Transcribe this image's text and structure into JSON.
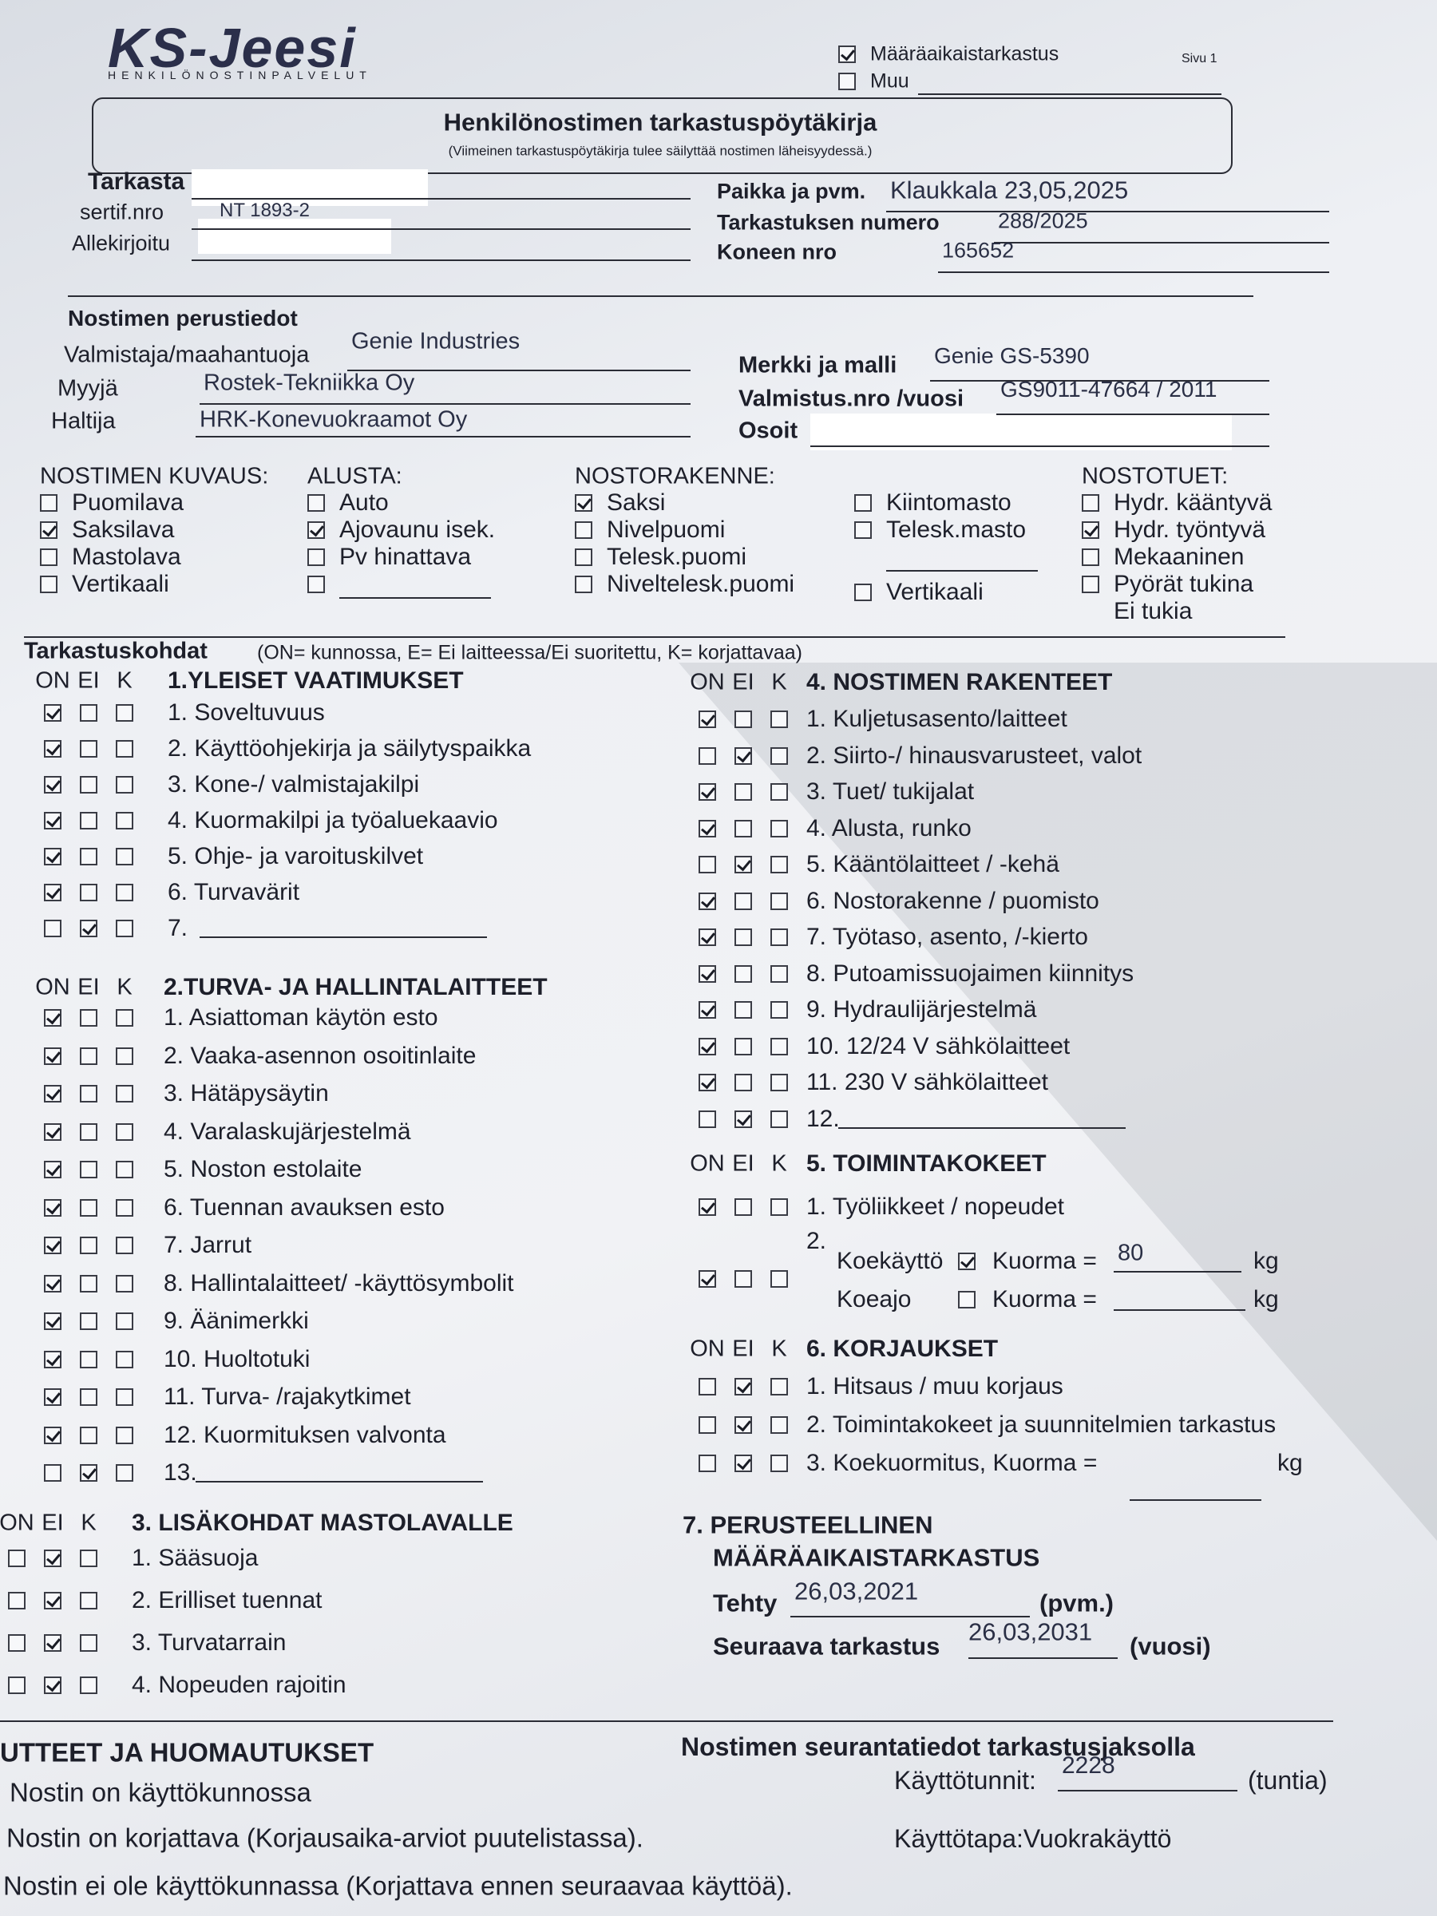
{
  "header": {
    "logo": "KS-Jeesi",
    "logo_sub": "HENKILÖNOSTINPALVELUT",
    "options": [
      {
        "label": "Määräaikaistarkastus",
        "checked": true
      },
      {
        "label": "Muu",
        "checked": false
      }
    ],
    "page": "Sivu 1"
  },
  "title": {
    "main": "Henkilönostimen tarkastuspöytäkirja",
    "note": "(Viimeinen tarkastuspöytäkirja tulee säilyttää nostimen läheisyydessä.)"
  },
  "inspector": {
    "left": [
      {
        "label": "Tarkasta"
      },
      {
        "label": "sertif.nro",
        "value": "NT 1893-2"
      },
      {
        "label": "Allekirjoitu"
      }
    ],
    "right": [
      {
        "label": "Paikka ja pvm.",
        "value": "Klaukkala 23,05,2025"
      },
      {
        "label": "Tarkastuksen numero",
        "value": "288/2025"
      },
      {
        "label": "Koneen nro",
        "value": "165652"
      }
    ]
  },
  "basic": {
    "title": "Nostimen perustiedot",
    "left": [
      {
        "label": "Valmistaja/maahantuoja",
        "value": "Genie Industries"
      },
      {
        "label": "Myyjä",
        "value": "Rostek-Tekniikka Oy"
      },
      {
        "label": "Haltija",
        "value": "HRK-Konevuokraamot Oy"
      }
    ],
    "right": [
      {
        "label": "Merkki ja malli",
        "value": "Genie GS-5390"
      },
      {
        "label": "Valmistus.nro /vuosi",
        "value": "GS9011-47664 / 2011"
      },
      {
        "label": "Osoit"
      }
    ]
  },
  "description": [
    {
      "title": "NOSTIMEN KUVAUS:",
      "items": [
        {
          "label": "Puomilava",
          "checked": false
        },
        {
          "label": "Saksilava",
          "checked": true
        },
        {
          "label": "Mastolava",
          "checked": false
        },
        {
          "label": "Vertikaali",
          "checked": false
        }
      ]
    },
    {
      "title": "ALUSTA:",
      "items": [
        {
          "label": "Auto",
          "checked": false
        },
        {
          "label": "Ajovaunu isek.",
          "checked": true
        },
        {
          "label": "Pv hinattava",
          "checked": false
        },
        {
          "checked": false
        }
      ]
    },
    {
      "title": "NOSTORAKENNE:",
      "items": [
        {
          "label": "Saksi",
          "checked": true
        },
        {
          "label": "Nivelpuomi",
          "checked": false
        },
        {
          "label": "Telesk.puomi",
          "checked": false
        },
        {
          "label": "Niveltelesk.puomi",
          "checked": false
        }
      ]
    },
    {
      "items": [
        {
          "label": "Kiintomasto",
          "checked": false
        },
        {
          "label": "Telesk.masto",
          "checked": false
        },
        {
          "box": false
        },
        {
          "label": "Vertikaali",
          "checked": false
        }
      ]
    },
    {
      "title": "NOSTOTUET:",
      "items": [
        {
          "label": "Hydr. kääntyvä",
          "checked": false
        },
        {
          "label": "Hydr. työntyvä",
          "checked": true
        },
        {
          "label": "Mekaaninen",
          "checked": false
        },
        {
          "label": "Pyörät tukina",
          "checked": false
        },
        {
          "label": "Ei tukia",
          "box": false
        }
      ]
    }
  ],
  "checklist": {
    "title": "Tarkastuskohdat",
    "legend": "(ON= kunnossa, E= Ei laitteessa/Ei suoritettu, K= korjattavaa)",
    "columns": [
      "ON",
      "EI",
      "K"
    ],
    "sections": [
      {
        "title": "1.YLEISET VAATIMUKSET",
        "items": [
          {
            "label": "1. Soveltuvuus",
            "checked": 0
          },
          {
            "label": "2. Käyttöohjekirja ja säilytyspaikka",
            "checked": 0
          },
          {
            "label": "3. Kone-/ valmistajakilpi",
            "checked": 0
          },
          {
            "label": "4. Kuormakilpi ja työaluekaavio",
            "checked": 0
          },
          {
            "label": "5. Ohje- ja varoituskilvet",
            "checked": 0
          },
          {
            "label": "6. Turvavärit",
            "checked": 0
          },
          {
            "label": "7.",
            "checked": 1,
            "blank": true
          }
        ]
      },
      {
        "title": "2.TURVA- JA HALLINTALAITTEET",
        "items": [
          {
            "label": "1. Asiattoman käytön esto",
            "checked": 0
          },
          {
            "label": "2. Vaaka-asennon osoitinlaite",
            "checked": 0
          },
          {
            "label": "3. Hätäpysäytin",
            "checked": 0
          },
          {
            "label": "4. Varalaskujärjestelmä",
            "checked": 0
          },
          {
            "label": "5. Noston estolaite",
            "checked": 0
          },
          {
            "label": "6. Tuennan avauksen esto",
            "checked": 0
          },
          {
            "label": "7. Jarrut",
            "checked": 0
          },
          {
            "label": "8. Hallintalaitteet/ -käyttösymbolit",
            "checked": 0
          },
          {
            "label": "9. Äänimerkki",
            "checked": 0
          },
          {
            "label": "10. Huoltotuki",
            "checked": 0
          },
          {
            "label": "11. Turva- /rajakytkimet",
            "checked": 0
          },
          {
            "label": "12. Kuormituksen valvonta",
            "checked": 0
          },
          {
            "label": "13.",
            "checked": 1,
            "blank": true
          }
        ]
      },
      {
        "title": "3. LISÄKOHDAT MASTOLAVALLE",
        "items": [
          {
            "label": "1. Sääsuoja",
            "checked": 1
          },
          {
            "label": "2. Erilliset tuennat",
            "checked": 1
          },
          {
            "label": "3. Turvatarrain",
            "checked": 1
          },
          {
            "label": "4. Nopeuden rajoitin",
            "checked": 1
          }
        ]
      },
      {
        "title": "4. NOSTIMEN RAKENTEET",
        "items": [
          {
            "label": "1. Kuljetusasento/laitteet",
            "checked": 0
          },
          {
            "label": "2. Siirto-/ hinausvarusteet, valot",
            "checked": 1
          },
          {
            "label": "3. Tuet/ tukijalat",
            "checked": 0
          },
          {
            "label": "4. Alusta, runko",
            "checked": 0
          },
          {
            "label": "5. Kääntölaitteet / -kehä",
            "checked": 1
          },
          {
            "label": "6. Nostorakenne / puomisto",
            "checked": 0
          },
          {
            "label": "7. Työtaso, asento, /-kierto",
            "checked": 0
          },
          {
            "label": "8. Putoamissuojaimen kiinnitys",
            "checked": 0
          },
          {
            "label": "9. Hydraulijärjestelmä",
            "checked": 0
          },
          {
            "label": "10. 12/24 V sähkölaitteet",
            "checked": 0
          },
          {
            "label": "11. 230 V sähkölaitteet",
            "checked": 0
          },
          {
            "label": "12.",
            "checked": 1,
            "blank": true
          }
        ]
      },
      {
        "title": "5. TOIMINTAKOKEET",
        "items": [
          {
            "label": "1. Työliikkeet / nopeudet",
            "checked": 0
          },
          {
            "label": "2.",
            "checked": 0,
            "sub": [
              {
                "label": "Koekäyttö",
                "checked": true,
                "load_label": "Kuorma =",
                "load": 80,
                "unit": "kg"
              },
              {
                "label": "Koeajo",
                "checked": false,
                "load_label": "Kuorma =",
                "unit": "kg"
              }
            ]
          }
        ]
      },
      {
        "title": "6. KORJAUKSET",
        "items": [
          {
            "label": "1. Hitsaus / muu korjaus",
            "checked": 1
          },
          {
            "label": "2. Toimintakokeet ja suunnitelmien tarkastus",
            "checked": 1
          },
          {
            "label": "3. Koekuormitus, Kuorma =",
            "checked": 1,
            "unit": "kg"
          }
        ]
      }
    ]
  },
  "periodic": {
    "title_lines": [
      "7. PERUSTEELLINEN",
      "MÄÄRÄAIKAISTARKASTUS"
    ],
    "done": {
      "label": "Tehty",
      "value": "26,03,2021",
      "unit": "(pvm.)"
    },
    "next": {
      "label": "Seuraava tarkastus",
      "value": "26,03,2031",
      "unit": "(vuosi)"
    }
  },
  "remarks": {
    "title": "UTTEET JA HUOMAUTUKSET",
    "lines": [
      "Nostin on käyttökunnossa",
      "Nostin on korjattava (Korjausaika-arviot puutelistassa).",
      "Nostin ei ole käyttökunnassa (Korjattava ennen seuraavaa käyttöä)."
    ]
  },
  "tracking": {
    "title": "Nostimen seurantatiedot tarkastusjaksolla",
    "hours": {
      "label": "Käyttötunnit:",
      "value": "2228",
      "unit": "(tuntia)"
    },
    "usage": "Käyttötapa:Vuokrakäyttö"
  }
}
